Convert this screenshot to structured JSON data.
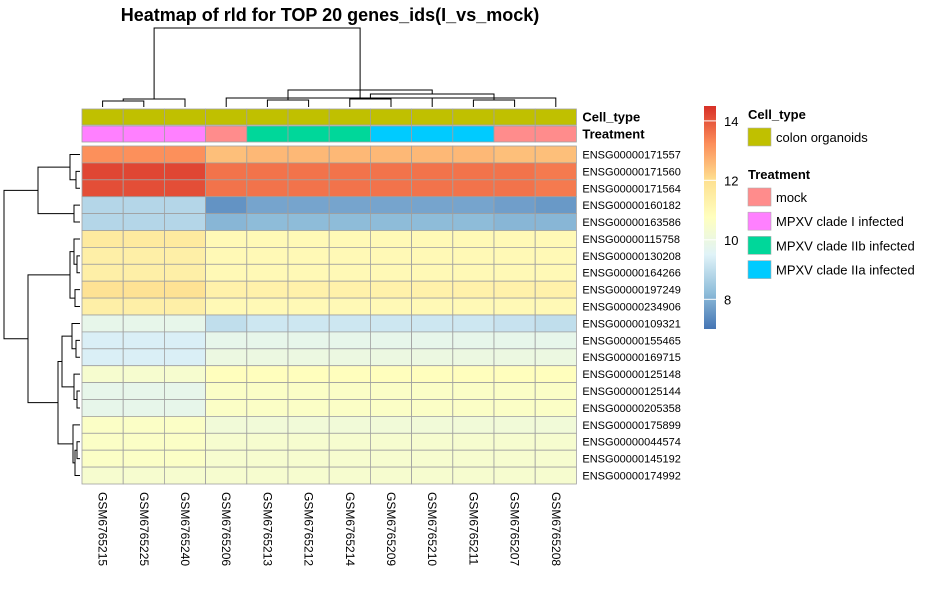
{
  "chart_data": {
    "type": "heatmap",
    "title": "Heatmap of rld for TOP 20 genes_ids(I_vs_mock)",
    "columns": [
      "GSM6765215",
      "GSM6765225",
      "GSM6765240",
      "GSM6765206",
      "GSM6765213",
      "GSM6765212",
      "GSM6765214",
      "GSM6765209",
      "GSM6765210",
      "GSM6765211",
      "GSM6765207",
      "GSM6765208"
    ],
    "rows": [
      "ENSG00000171557",
      "ENSG00000171560",
      "ENSG00000171564",
      "ENSG00000160182",
      "ENSG00000163586",
      "ENSG00000115758",
      "ENSG00000130208",
      "ENSG00000164266",
      "ENSG00000197249",
      "ENSG00000234906",
      "ENSG00000109321",
      "ENSG00000155465",
      "ENSG00000169715",
      "ENSG00000125148",
      "ENSG00000125144",
      "ENSG00000205358",
      "ENSG00000175899",
      "ENSG00000044574",
      "ENSG00000145192",
      "ENSG00000174992"
    ],
    "values": [
      [
        13.2,
        13.2,
        13.2,
        12.5,
        12.6,
        12.6,
        12.6,
        12.6,
        12.6,
        12.6,
        12.5,
        12.5
      ],
      [
        14.2,
        14.2,
        14.2,
        13.6,
        13.6,
        13.6,
        13.6,
        13.6,
        13.6,
        13.6,
        13.6,
        13.5
      ],
      [
        14.1,
        14.1,
        14.1,
        13.6,
        13.6,
        13.6,
        13.6,
        13.6,
        13.6,
        13.6,
        13.6,
        13.5
      ],
      [
        8.8,
        8.8,
        8.8,
        7.5,
        7.8,
        7.8,
        7.8,
        7.8,
        7.8,
        7.8,
        7.7,
        7.6
      ],
      [
        8.8,
        8.8,
        8.8,
        8.1,
        8.2,
        8.2,
        8.2,
        8.2,
        8.2,
        8.2,
        8.1,
        8.1
      ],
      [
        11.6,
        11.6,
        11.6,
        11.0,
        11.0,
        11.0,
        11.0,
        11.0,
        11.0,
        11.0,
        11.0,
        11.0
      ],
      [
        11.4,
        11.4,
        11.4,
        11.0,
        11.0,
        11.0,
        11.0,
        11.0,
        11.0,
        11.0,
        11.0,
        11.0
      ],
      [
        11.4,
        11.4,
        11.4,
        11.0,
        11.0,
        11.0,
        11.0,
        11.0,
        11.0,
        11.0,
        11.0,
        11.0
      ],
      [
        11.9,
        11.9,
        11.9,
        11.3,
        11.3,
        11.3,
        11.3,
        11.3,
        11.3,
        11.3,
        11.3,
        11.3
      ],
      [
        11.4,
        11.4,
        11.4,
        11.0,
        11.0,
        11.0,
        11.0,
        11.0,
        11.0,
        11.0,
        11.0,
        11.0
      ],
      [
        9.8,
        9.8,
        9.8,
        9.0,
        9.2,
        9.2,
        9.2,
        9.2,
        9.2,
        9.2,
        9.1,
        9.0
      ],
      [
        9.4,
        9.4,
        9.4,
        9.8,
        9.8,
        9.8,
        9.8,
        9.8,
        9.8,
        9.8,
        9.8,
        9.8
      ],
      [
        9.4,
        9.4,
        9.4,
        10.0,
        10.0,
        10.0,
        10.0,
        10.0,
        10.0,
        10.0,
        10.0,
        10.0
      ],
      [
        10.4,
        10.4,
        10.4,
        10.8,
        10.8,
        10.8,
        10.8,
        10.8,
        10.8,
        10.8,
        10.8,
        10.8
      ],
      [
        9.8,
        9.8,
        9.8,
        10.6,
        10.6,
        10.6,
        10.6,
        10.6,
        10.6,
        10.6,
        10.6,
        10.6
      ],
      [
        9.8,
        9.8,
        9.8,
        10.6,
        10.6,
        10.6,
        10.6,
        10.6,
        10.6,
        10.6,
        10.6,
        10.6
      ],
      [
        10.6,
        10.6,
        10.6,
        10.2,
        10.2,
        10.2,
        10.2,
        10.2,
        10.2,
        10.2,
        10.2,
        10.2
      ],
      [
        10.6,
        10.6,
        10.6,
        10.4,
        10.4,
        10.4,
        10.4,
        10.4,
        10.4,
        10.4,
        10.4,
        10.4
      ],
      [
        10.6,
        10.6,
        10.6,
        10.4,
        10.4,
        10.4,
        10.4,
        10.4,
        10.4,
        10.4,
        10.4,
        10.4
      ],
      [
        10.4,
        10.4,
        10.4,
        10.4,
        10.4,
        10.4,
        10.4,
        10.4,
        10.4,
        10.4,
        10.4,
        10.4
      ]
    ],
    "color_range": [
      7,
      14.5
    ],
    "colorbar_ticks": [
      8,
      10,
      12,
      14
    ],
    "colorbar_colors": [
      "#4575b4",
      "#91bfdb",
      "#e0f3f8",
      "#ffffbf",
      "#fee090",
      "#fc8d59",
      "#d73027"
    ],
    "grid": true,
    "annotations": {
      "row_labels": [
        "Cell_type",
        "Treatment"
      ],
      "cell_type": [
        "colon organoids",
        "colon organoids",
        "colon organoids",
        "colon organoids",
        "colon organoids",
        "colon organoids",
        "colon organoids",
        "colon organoids",
        "colon organoids",
        "colon organoids",
        "colon organoids",
        "colon organoids"
      ],
      "treatment": [
        "MPXV clade I infected",
        "MPXV clade I infected",
        "MPXV clade I infected",
        "mock",
        "MPXV clade IIb infected",
        "MPXV clade IIb infected",
        "MPXV clade IIb infected",
        "MPXV clade IIa infected",
        "MPXV clade IIa infected",
        "MPXV clade IIa infected",
        "mock",
        "mock"
      ]
    },
    "legend": {
      "placement": "right",
      "cell_type_title": "Cell_type",
      "cell_type_items": [
        {
          "label": "colon organoids",
          "color": "#c0c000"
        }
      ],
      "treatment_title": "Treatment",
      "treatment_items": [
        {
          "label": "mock",
          "color": "#ff8c8c"
        },
        {
          "label": "MPXV clade I infected",
          "color": "#ff80ff"
        },
        {
          "label": "MPXV clade IIb infected",
          "color": "#00d79a"
        },
        {
          "label": "MPXV clade IIa infected",
          "color": "#00cbff"
        }
      ]
    }
  }
}
